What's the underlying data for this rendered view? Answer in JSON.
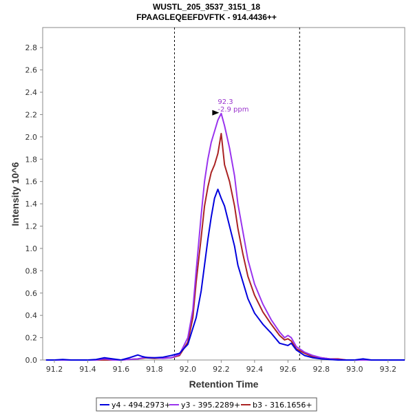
{
  "chart_data": {
    "type": "line",
    "title": "WUSTL_205_3537_3151_18",
    "subtitle": "FPAAGLEQEEFDVFTK - 914.4436++",
    "xlabel": "Retention Time",
    "ylabel": "Intensity 10^6",
    "xlim": [
      91.13,
      93.3
    ],
    "ylim": [
      0,
      2.98
    ],
    "xticks": [
      "91.2",
      "91.4",
      "91.6",
      "91.8",
      "92.0",
      "92.2",
      "92.4",
      "92.6",
      "92.8",
      "93.0",
      "93.2"
    ],
    "yticks": [
      "0.0",
      "0.2",
      "0.4",
      "0.6",
      "0.8",
      "1.0",
      "1.2",
      "1.4",
      "1.6",
      "1.8",
      "2.0",
      "2.2",
      "2.4",
      "2.6",
      "2.8"
    ],
    "grid": false,
    "boundaries": [
      91.92,
      92.67
    ],
    "annotation": {
      "x": 92.2,
      "y": 2.21,
      "line1": "92.3",
      "line2": "-2.9 ppm",
      "color": "#9933cc"
    },
    "legend_position": "bottom",
    "series": [
      {
        "name": "y4 - 494.2973+",
        "color": "#0000dd",
        "x": [
          91.15,
          91.2,
          91.25,
          91.3,
          91.35,
          91.4,
          91.45,
          91.5,
          91.55,
          91.6,
          91.65,
          91.7,
          91.73,
          91.76,
          91.8,
          91.85,
          91.9,
          91.95,
          92.0,
          92.05,
          92.08,
          92.1,
          92.12,
          92.14,
          92.16,
          92.18,
          92.2,
          92.22,
          92.25,
          92.28,
          92.3,
          92.33,
          92.36,
          92.4,
          92.45,
          92.5,
          92.55,
          92.6,
          92.62,
          92.65,
          92.7,
          92.75,
          92.8,
          92.85,
          92.9,
          92.95,
          93.0,
          93.05,
          93.1,
          93.15,
          93.2,
          93.3
        ],
        "y": [
          0.0,
          0.0,
          0.005,
          0.0,
          0.0,
          0.0,
          0.005,
          0.02,
          0.01,
          0.0,
          0.02,
          0.045,
          0.03,
          0.02,
          0.02,
          0.025,
          0.04,
          0.06,
          0.14,
          0.38,
          0.62,
          0.85,
          1.08,
          1.28,
          1.45,
          1.53,
          1.45,
          1.38,
          1.2,
          1.02,
          0.85,
          0.7,
          0.55,
          0.42,
          0.32,
          0.24,
          0.15,
          0.13,
          0.15,
          0.09,
          0.04,
          0.02,
          0.01,
          0.005,
          0.0,
          0.0,
          0.0,
          0.01,
          0.0,
          0.0,
          0.0,
          0.0
        ]
      },
      {
        "name": "y3 - 395.2289+",
        "color": "#9933ee",
        "x": [
          91.15,
          91.3,
          91.45,
          91.5,
          91.55,
          91.6,
          91.7,
          91.75,
          91.8,
          91.85,
          91.9,
          91.95,
          92.0,
          92.03,
          92.05,
          92.08,
          92.1,
          92.12,
          92.14,
          92.16,
          92.18,
          92.2,
          92.22,
          92.25,
          92.28,
          92.3,
          92.33,
          92.36,
          92.4,
          92.45,
          92.5,
          92.55,
          92.58,
          92.6,
          92.62,
          92.65,
          92.7,
          92.75,
          92.8,
          92.85,
          92.9,
          92.95,
          93.0,
          93.1,
          93.2,
          93.3
        ],
        "y": [
          0.0,
          0.0,
          0.0,
          0.01,
          0.0,
          0.0,
          0.01,
          0.025,
          0.02,
          0.015,
          0.02,
          0.05,
          0.2,
          0.45,
          0.8,
          1.3,
          1.6,
          1.8,
          1.95,
          2.05,
          2.15,
          2.21,
          2.1,
          1.9,
          1.65,
          1.4,
          1.15,
          0.9,
          0.68,
          0.5,
          0.36,
          0.25,
          0.2,
          0.22,
          0.2,
          0.12,
          0.07,
          0.04,
          0.02,
          0.01,
          0.005,
          0.0,
          0.0,
          0.0,
          0.0,
          0.0
        ]
      },
      {
        "name": "b3 - 316.1656+",
        "color": "#aa2222",
        "x": [
          91.15,
          91.5,
          91.6,
          91.7,
          91.75,
          91.8,
          91.9,
          91.95,
          92.0,
          92.03,
          92.05,
          92.08,
          92.1,
          92.12,
          92.14,
          92.16,
          92.18,
          92.2,
          92.22,
          92.25,
          92.28,
          92.3,
          92.33,
          92.36,
          92.4,
          92.45,
          92.5,
          92.55,
          92.58,
          92.6,
          92.62,
          92.65,
          92.7,
          92.75,
          92.8,
          92.85,
          92.9,
          92.95,
          93.0,
          93.1,
          93.2,
          93.3
        ],
        "y": [
          0.0,
          0.0,
          0.0,
          0.01,
          0.02,
          0.015,
          0.02,
          0.04,
          0.16,
          0.38,
          0.7,
          1.1,
          1.38,
          1.55,
          1.68,
          1.75,
          1.85,
          2.03,
          1.75,
          1.6,
          1.38,
          1.18,
          0.95,
          0.75,
          0.58,
          0.43,
          0.32,
          0.22,
          0.18,
          0.19,
          0.17,
          0.1,
          0.06,
          0.03,
          0.02,
          0.01,
          0.01,
          0.0,
          0.0,
          0.0,
          0.0,
          0.0
        ]
      }
    ]
  }
}
